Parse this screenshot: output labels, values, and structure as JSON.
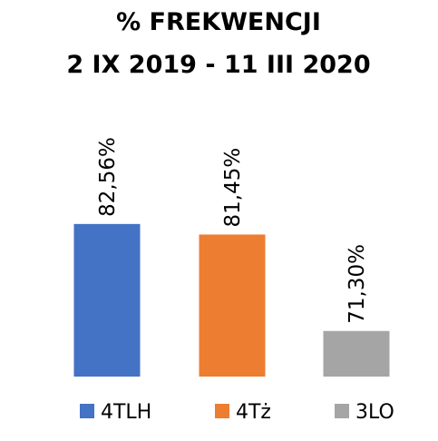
{
  "chart_data": {
    "type": "bar",
    "title": [
      "% FREKWENCJI",
      "2 IX 2019 - 11 III 2020"
    ],
    "categories": [
      "4TLH",
      "4Tż",
      "3LO"
    ],
    "series": [
      {
        "values": [
          82.56,
          81.45,
          71.3
        ]
      }
    ],
    "data_labels": [
      "82,56%",
      "81,45%",
      "71,30%"
    ],
    "colors": [
      "#4472C4",
      "#ED7D31",
      "#A5A5A5"
    ],
    "ylim": [
      66.5,
      83.5
    ],
    "grid": false,
    "axes_visible": false,
    "data_label_orientation": "vertical",
    "legend": {
      "position": "bottom",
      "items": [
        "4TLH",
        "4Tż",
        "3LO"
      ]
    }
  }
}
